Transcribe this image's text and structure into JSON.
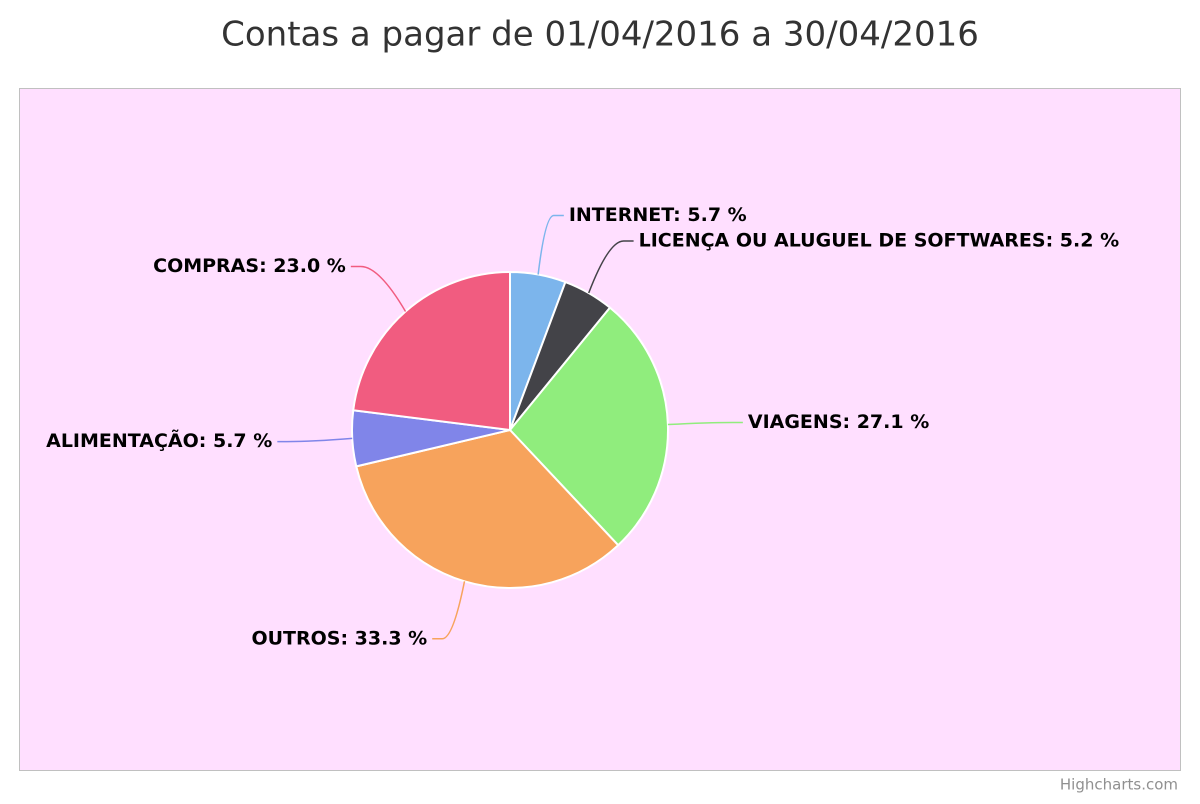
{
  "chart_data": {
    "type": "pie",
    "title": "Contas a pagar de 01/04/2016 a 30/04/2016",
    "values": [
      5.7,
      5.2,
      27.1,
      33.3,
      5.7,
      23.0
    ],
    "value_labels": [
      "INTERNET: 5.7 %",
      "LICENÇA OU ALUGUEL DE SOFTWARES: 5.2 %",
      "VIAGENS: 27.1 %",
      "OUTROS: 33.3 %",
      "ALIMENTAÇÃO: 5.7 %",
      "COMPRAS: 23.0 %"
    ],
    "colors": [
      "#7cb5ec",
      "#434348",
      "#90ed7d",
      "#f7a35c",
      "#8085e9",
      "#f15c80"
    ],
    "credits": "Highcharts.com"
  }
}
